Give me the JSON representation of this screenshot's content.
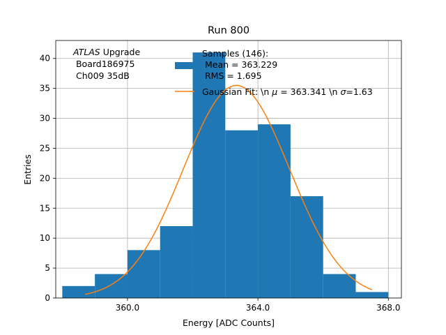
{
  "chart_data": {
    "type": "bar",
    "title": "Run 800",
    "xlabel": "Energy [ADC Counts]",
    "ylabel": "Entries",
    "xlim": [
      357.8,
      368.4
    ],
    "ylim": [
      0,
      43
    ],
    "grid": true,
    "xticks": [
      360,
      364,
      368
    ],
    "xtick_labels": [
      "360.0",
      "364.0",
      "368.0"
    ],
    "yticks": [
      0,
      5,
      10,
      15,
      20,
      25,
      30,
      35,
      40
    ],
    "ytick_labels": [
      "0",
      "5",
      "10",
      "15",
      "20",
      "25",
      "30",
      "35",
      "40"
    ],
    "histogram": {
      "bin_edges": [
        358,
        359,
        360,
        361,
        362,
        363,
        364,
        365,
        366,
        367,
        368
      ],
      "counts": [
        2,
        4,
        8,
        12,
        41,
        28,
        29,
        17,
        4,
        1
      ],
      "color": "#1f77b4"
    },
    "fit": {
      "type": "gaussian",
      "mu": 363.341,
      "sigma": 1.63,
      "amplitude": 35.5,
      "x_range": [
        358.7,
        367.5
      ],
      "color": "#ff7f0e"
    },
    "annotation": {
      "italic": "ATLAS",
      "line1_rest": " Upgrade",
      "line2": " Board186975",
      "line3": " Ch009 35dB"
    },
    "legend": {
      "position": "top-right",
      "hist_line1": "Samples (146):",
      "hist_line2": " Mean = 363.229",
      "hist_line3": " RMS = 1.695",
      "fit_prefix": "Gaussian Fit: \\n ",
      "fit_mu_symbol": "μ",
      "fit_mid": " = 363.341 \\n ",
      "fit_sigma_symbol": "σ",
      "fit_suffix": "=1.63"
    }
  }
}
